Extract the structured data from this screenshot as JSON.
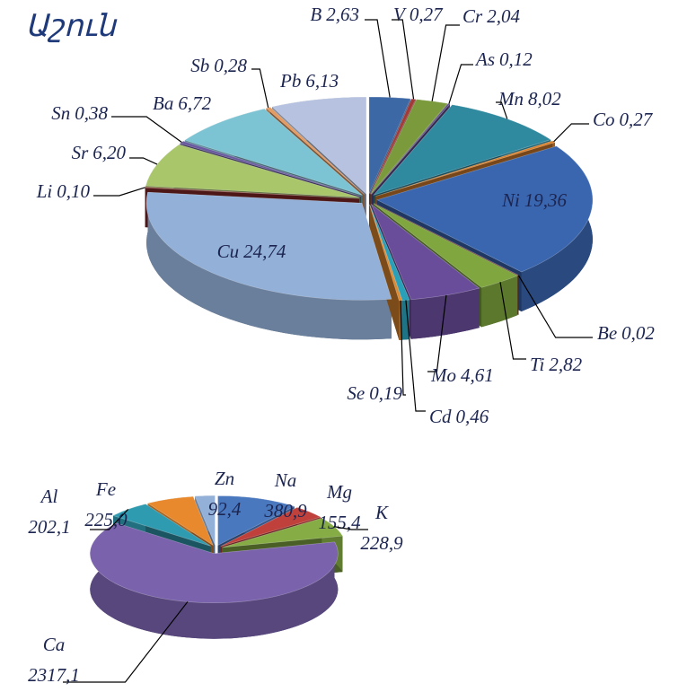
{
  "chart_data": [
    {
      "type": "pie",
      "title": "Աշուն",
      "categories": [
        "B",
        "V",
        "Cr",
        "As",
        "Mn",
        "Co",
        "Ni",
        "Be",
        "Ti",
        "Mo",
        "Cd",
        "Se",
        "Cu",
        "Li",
        "Sr",
        "Sn",
        "Ba",
        "Sb",
        "Pb"
      ],
      "values": [
        2.63,
        0.27,
        2.04,
        0.12,
        8.02,
        0.27,
        19.36,
        0.02,
        2.82,
        4.61,
        0.46,
        0.19,
        24.74,
        0.1,
        6.2,
        0.38,
        6.72,
        0.28,
        6.13
      ],
      "value_labels": [
        "2,63",
        "0,27",
        "2,04",
        "0,12",
        "8,02",
        "0,27",
        "19,36",
        "0,02",
        "2,82",
        "4,61",
        "0,46",
        "0,19",
        "24,74",
        "0,10",
        "6,20",
        "0,38",
        "6,72",
        "0,28",
        "6,13"
      ],
      "colors": [
        "#3d68a6",
        "#a33a38",
        "#7a9a3c",
        "#5e4a8c",
        "#2f8aa0",
        "#d9812d",
        "#3a66b0",
        "#8e2c2a",
        "#7fa63f",
        "#6a4d9a",
        "#2aa0b8",
        "#e08a30",
        "#93b0d8",
        "#8a2a28",
        "#a9c66a",
        "#6a5aa0",
        "#7cc3d3",
        "#e59a60",
        "#b6c2e0"
      ]
    },
    {
      "type": "pie",
      "categories": [
        "Na",
        "Mg",
        "K",
        "Ca",
        "Al",
        "Fe",
        "Zn"
      ],
      "values": [
        380.9,
        155.4,
        228.9,
        2317.1,
        202.1,
        225.0,
        92.4
      ],
      "value_labels": [
        "380,9",
        "155,4",
        "228,9",
        "2317,1",
        "202,1",
        "225,0",
        "92,4"
      ],
      "colors": [
        "#4a78bf",
        "#c0413c",
        "#86ad45",
        "#7a62ad",
        "#2f9bb0",
        "#e8892d",
        "#93b0d8"
      ]
    }
  ]
}
